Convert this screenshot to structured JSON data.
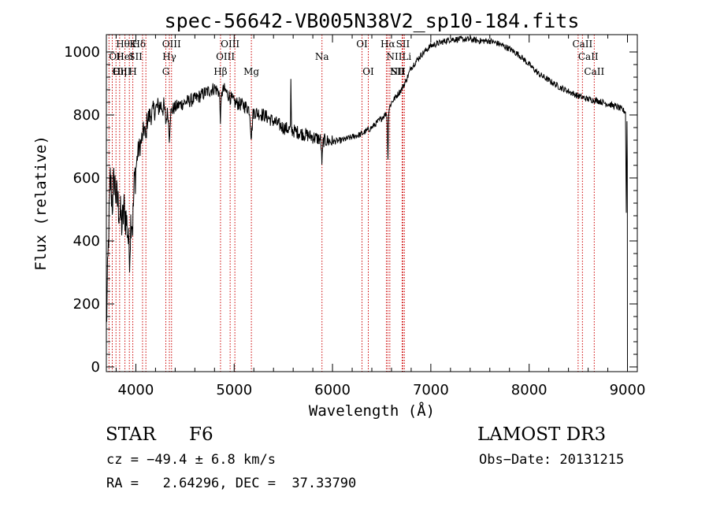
{
  "chart_data": {
    "type": "line",
    "title": "spec-56642-VB005N38V2_sp10-184.fits",
    "xlabel": "Wavelength (Å)",
    "ylabel": "Flux (relative)",
    "xlim": [
      3700,
      9100
    ],
    "ylim": [
      -15,
      1055
    ],
    "xticks": [
      4000,
      5000,
      6000,
      7000,
      8000,
      9000
    ],
    "yticks": [
      0,
      200,
      400,
      600,
      800,
      1000
    ],
    "grid": false,
    "color": "#000000",
    "line_color": "#cc0000",
    "spectrum_anchors": [
      [
        3700,
        120
      ],
      [
        3720,
        380
      ],
      [
        3740,
        600
      ],
      [
        3760,
        520
      ],
      [
        3780,
        600
      ],
      [
        3800,
        540
      ],
      [
        3830,
        500
      ],
      [
        3860,
        450
      ],
      [
        3880,
        500
      ],
      [
        3900,
        470
      ],
      [
        3920,
        430
      ],
      [
        3940,
        420
      ],
      [
        3950,
        480
      ],
      [
        3970,
        520
      ],
      [
        3990,
        600
      ],
      [
        4020,
        680
      ],
      [
        4060,
        720
      ],
      [
        4100,
        780
      ],
      [
        4150,
        800
      ],
      [
        4200,
        820
      ],
      [
        4250,
        830
      ],
      [
        4300,
        820
      ],
      [
        4340,
        800
      ],
      [
        4380,
        820
      ],
      [
        4430,
        830
      ],
      [
        4500,
        840
      ],
      [
        4600,
        850
      ],
      [
        4700,
        870
      ],
      [
        4800,
        885
      ],
      [
        4860,
        870
      ],
      [
        4900,
        880
      ],
      [
        4950,
        860
      ],
      [
        5000,
        840
      ],
      [
        5100,
        830
      ],
      [
        5200,
        810
      ],
      [
        5300,
        800
      ],
      [
        5400,
        780
      ],
      [
        5500,
        760
      ],
      [
        5600,
        750
      ],
      [
        5700,
        740
      ],
      [
        5800,
        730
      ],
      [
        5900,
        720
      ],
      [
        6000,
        715
      ],
      [
        6100,
        720
      ],
      [
        6200,
        730
      ],
      [
        6300,
        740
      ],
      [
        6400,
        760
      ],
      [
        6500,
        790
      ],
      [
        6560,
        810
      ],
      [
        6600,
        840
      ],
      [
        6700,
        880
      ],
      [
        6750,
        910
      ],
      [
        6800,
        950
      ],
      [
        6900,
        990
      ],
      [
        7000,
        1020
      ],
      [
        7100,
        1030
      ],
      [
        7200,
        1040
      ],
      [
        7300,
        1040
      ],
      [
        7400,
        1040
      ],
      [
        7500,
        1035
      ],
      [
        7600,
        1035
      ],
      [
        7700,
        1025
      ],
      [
        7800,
        1010
      ],
      [
        7900,
        990
      ],
      [
        8000,
        960
      ],
      [
        8100,
        930
      ],
      [
        8200,
        910
      ],
      [
        8300,
        890
      ],
      [
        8400,
        875
      ],
      [
        8500,
        860
      ],
      [
        8600,
        850
      ],
      [
        8700,
        845
      ],
      [
        8800,
        835
      ],
      [
        8900,
        825
      ],
      [
        8980,
        810
      ],
      [
        9000,
        0
      ]
    ],
    "absorption_features": [
      {
        "center": 3933,
        "depth": 60,
        "width": 10
      },
      {
        "center": 3968,
        "depth": 60,
        "width": 10
      },
      {
        "center": 4101,
        "depth": 60,
        "width": 8
      },
      {
        "center": 4305,
        "depth": 40,
        "width": 10
      },
      {
        "center": 4340,
        "depth": 70,
        "width": 8
      },
      {
        "center": 4861,
        "depth": 80,
        "width": 8
      },
      {
        "center": 5175,
        "depth": 80,
        "width": 12
      },
      {
        "center": 5893,
        "depth": 70,
        "width": 8
      },
      {
        "center": 6563,
        "depth": 150,
        "width": 6
      }
    ],
    "emission_features": [
      {
        "center": 5577,
        "height": 160,
        "width": 3
      }
    ],
    "spectral_lines": [
      {
        "label": "Hθ",
        "wavelength": 3798,
        "row": 1,
        "align": "start"
      },
      {
        "label": "K",
        "wavelength": 3934,
        "row": 1,
        "align": "start"
      },
      {
        "label": "Hδ",
        "wavelength": 4102,
        "row": 1,
        "align": "end"
      },
      {
        "label": "OII",
        "wavelength": 3727,
        "row": 2,
        "align": "start"
      },
      {
        "label": "HeI",
        "wavelength": 3889,
        "row": 2,
        "align": "middle"
      },
      {
        "label": "SII",
        "wavelength": 4068,
        "row": 2,
        "align": "end"
      },
      {
        "label": "OIII",
        "wavelength": 3760,
        "row": 3,
        "align": "start"
      },
      {
        "label": "Hη",
        "wavelength": 3835,
        "row": 3,
        "align": "middle"
      },
      {
        "label": "H",
        "wavelength": 3969,
        "row": 3,
        "align": "middle"
      },
      {
        "label": "OIII",
        "wavelength": 4363,
        "row": 1,
        "align": "middle"
      },
      {
        "label": "Hγ",
        "wavelength": 4341,
        "row": 2,
        "align": "middle"
      },
      {
        "label": "G",
        "wavelength": 4305,
        "row": 3,
        "align": "middle"
      },
      {
        "label": "OIII",
        "wavelength": 4959,
        "row": 1,
        "align": "middle"
      },
      {
        "label": "OIII",
        "wavelength": 5007,
        "row": 2,
        "align": "end"
      },
      {
        "label": "Hβ",
        "wavelength": 4861,
        "row": 3,
        "align": "middle"
      },
      {
        "label": "Mg",
        "wavelength": 5175,
        "row": 3,
        "align": "middle"
      },
      {
        "label": "Na",
        "wavelength": 5893,
        "row": 2,
        "align": "middle"
      },
      {
        "label": "OI",
        "wavelength": 6300,
        "row": 1,
        "align": "middle"
      },
      {
        "label": "OI",
        "wavelength": 6364,
        "row": 3,
        "align": "middle"
      },
      {
        "label": "Hα",
        "wavelength": 6563,
        "row": 1,
        "align": "middle"
      },
      {
        "label": "SII",
        "wavelength": 6716,
        "row": 1,
        "align": "middle"
      },
      {
        "label": "NII",
        "wavelength": 6548,
        "row": 2,
        "align": "start"
      },
      {
        "label": "Li",
        "wavelength": 6708,
        "row": 2,
        "align": "start"
      },
      {
        "label": "NII",
        "wavelength": 6583,
        "row": 3,
        "align": "start"
      },
      {
        "label": "SII",
        "wavelength": 6731,
        "row": 3,
        "align": "end"
      },
      {
        "label": "CaII",
        "wavelength": 8542,
        "row": 1,
        "align": "middle"
      },
      {
        "label": "CaII",
        "wavelength": 8498,
        "row": 2,
        "align": "start"
      },
      {
        "label": "CaII",
        "wavelength": 8662,
        "row": 3,
        "align": "middle"
      }
    ]
  },
  "info": {
    "object_class": "STAR",
    "subclass": "F6",
    "survey": "LAMOST DR3",
    "redshift": "cz = −49.4 ± 6.8 km/s",
    "obs_date": "Obs−Date: 20131215",
    "coords": "RA =   2.64296, DEC =  37.33790"
  }
}
